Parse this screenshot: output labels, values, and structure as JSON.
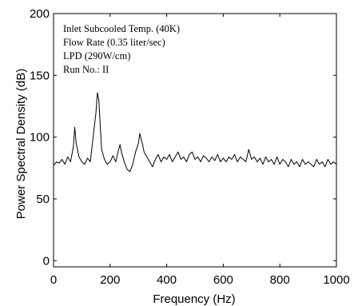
{
  "chart_data": {
    "type": "line",
    "xlabel": "Frequency (Hz)",
    "ylabel": "Power Spectral Density (dB)",
    "xlim": [
      0,
      1000
    ],
    "ylim": [
      -5,
      200
    ],
    "xticks": [
      "0",
      "200",
      "400",
      "600",
      "800",
      "1000"
    ],
    "yticks": [
      "0",
      "50",
      "100",
      "150",
      "200"
    ],
    "grid": false,
    "annotations": [
      "Inlet Subcooled Temp. (40K)",
      "Flow Rate (0.35 liter/sec)",
      "LPD (290W/cm)",
      "Run No.: II"
    ],
    "series": [
      {
        "x": [
          0,
          10,
          20,
          30,
          40,
          50,
          60,
          70,
          75,
          80,
          90,
          100,
          110,
          120,
          130,
          140,
          150,
          155,
          160,
          165,
          170,
          180,
          190,
          200,
          210,
          220,
          230,
          235,
          240,
          250,
          260,
          270,
          280,
          290,
          300,
          305,
          310,
          315,
          320,
          330,
          340,
          350,
          360,
          370,
          380,
          390,
          400,
          410,
          420,
          430,
          440,
          450,
          460,
          470,
          480,
          490,
          500,
          510,
          520,
          530,
          540,
          550,
          560,
          570,
          580,
          590,
          600,
          610,
          620,
          630,
          640,
          650,
          660,
          670,
          680,
          690,
          700,
          710,
          720,
          730,
          740,
          750,
          760,
          770,
          780,
          790,
          800,
          810,
          820,
          830,
          840,
          850,
          860,
          870,
          880,
          890,
          900,
          910,
          920,
          930,
          940,
          950,
          960,
          970,
          980,
          990,
          1000
        ],
        "y": [
          77,
          80,
          79,
          82,
          78,
          84,
          80,
          92,
          108,
          95,
          84,
          80,
          78,
          83,
          80,
          100,
          120,
          136,
          130,
          110,
          90,
          82,
          78,
          80,
          85,
          80,
          90,
          94,
          88,
          80,
          74,
          72,
          78,
          88,
          95,
          103,
          98,
          94,
          88,
          84,
          80,
          76,
          82,
          86,
          80,
          84,
          82,
          86,
          80,
          84,
          88,
          82,
          84,
          80,
          86,
          88,
          82,
          84,
          80,
          85,
          83,
          80,
          84,
          81,
          86,
          80,
          83,
          80,
          84,
          82,
          86,
          80,
          84,
          82,
          80,
          90,
          82,
          84,
          80,
          83,
          78,
          84,
          80,
          82,
          78,
          84,
          78,
          82,
          80,
          76,
          82,
          78,
          80,
          76,
          82,
          78,
          80,
          78,
          76,
          82,
          78,
          80,
          76,
          82,
          78,
          80,
          78
        ]
      }
    ]
  }
}
